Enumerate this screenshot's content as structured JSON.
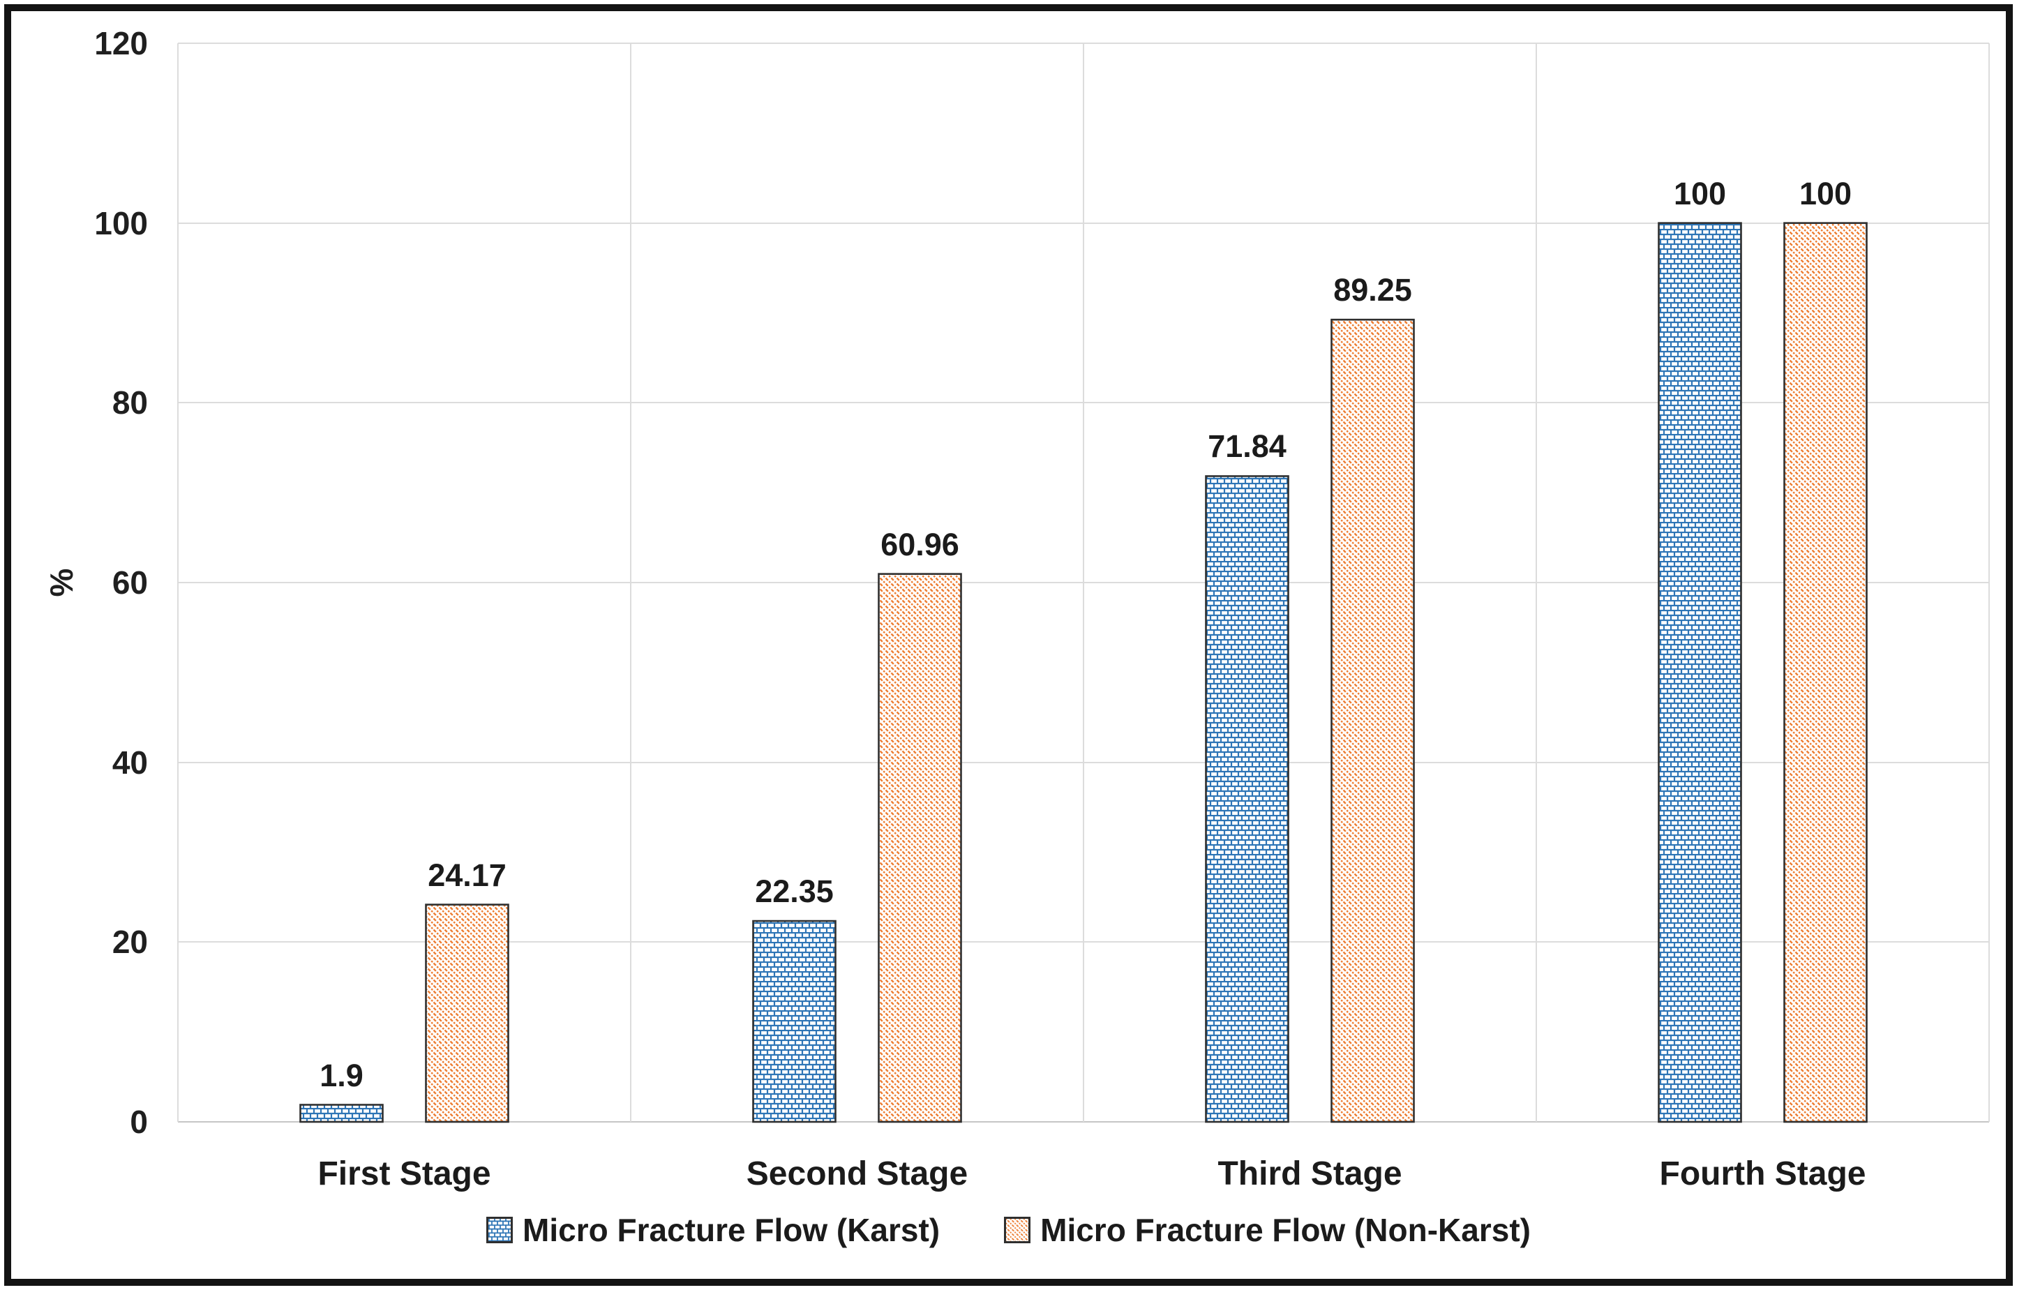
{
  "frame": {
    "background": "#ffffff",
    "border_color": "#131313"
  },
  "chart_data": {
    "type": "bar",
    "title": "",
    "xlabel": "",
    "ylabel": "%",
    "categories": [
      "First Stage",
      "Second Stage",
      "Third Stage",
      "Fourth Stage"
    ],
    "series": [
      {
        "name": "Micro Fracture Flow (Karst)",
        "color": "#2E75B6",
        "pattern": "brick",
        "values": [
          1.9,
          22.35,
          71.84,
          100
        ]
      },
      {
        "name": "Micro Fracture Flow (Non-Karst)",
        "color": "#ED7D31",
        "pattern": "diagonal",
        "values": [
          24.17,
          60.96,
          89.25,
          100
        ]
      }
    ],
    "ylim": [
      0,
      120
    ],
    "yticks": [
      0,
      20,
      40,
      60,
      80,
      100,
      120
    ],
    "grid": true,
    "legend_position": "bottom",
    "colors": {
      "gridline": "#dcdcdc",
      "baseline": "#c6c6c6",
      "bar_border": "#2f2f2f",
      "label_text": "#1b1b1b",
      "bar_background": "#ffffff"
    }
  }
}
